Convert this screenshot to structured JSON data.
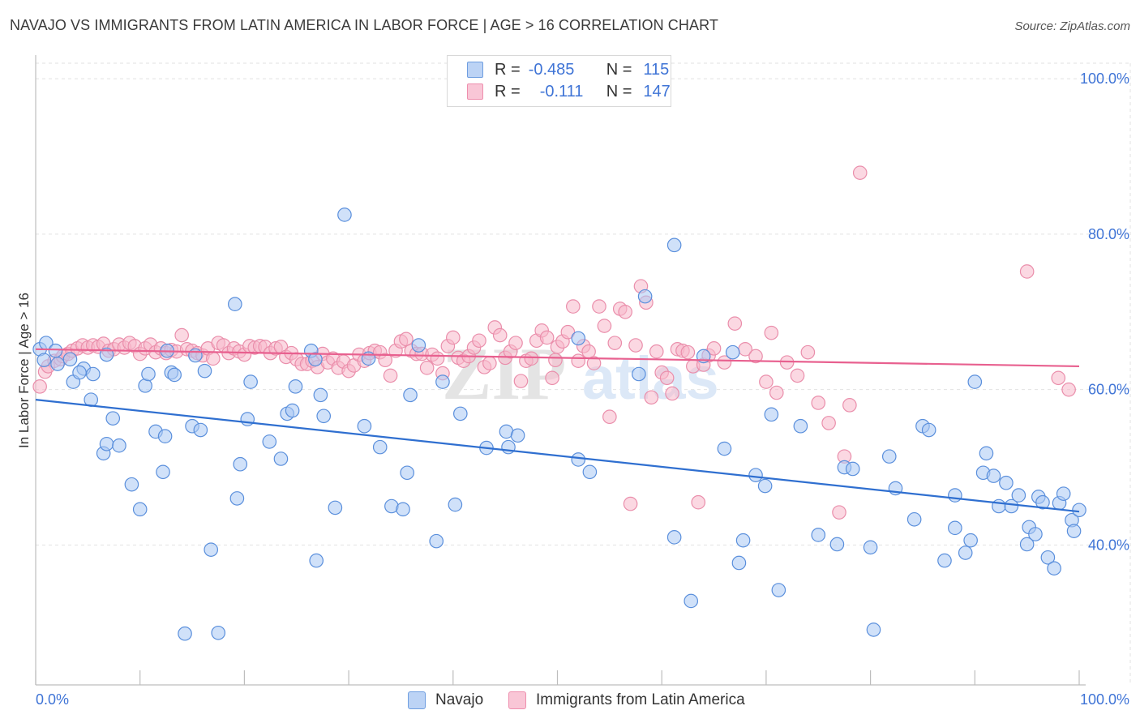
{
  "header": {
    "title": "NAVAJO VS IMMIGRANTS FROM LATIN AMERICA IN LABOR FORCE | AGE > 16 CORRELATION CHART",
    "source": "Source: ZipAtlas.com"
  },
  "legend": {
    "r_label": "R =",
    "n_label": "N =",
    "series": [
      {
        "r": "-0.485",
        "n": "115"
      },
      {
        "r": "-0.111",
        "n": "147"
      }
    ]
  },
  "watermark": {
    "zip": "ZIP",
    "atlas": "atlas"
  },
  "chart_data": {
    "type": "scatter",
    "title": "NAVAJO VS IMMIGRANTS FROM LATIN AMERICA IN LABOR FORCE | AGE > 16 CORRELATION CHART",
    "ylabel": "In Labor Force | Age > 16",
    "xlabel": "",
    "xlim": [
      0,
      100
    ],
    "ylim": [
      22,
      102
    ],
    "x_tick_labels": [
      "0.0%",
      "100.0%"
    ],
    "y_ticks": [
      100,
      80,
      60,
      40
    ],
    "y_tick_labels": [
      "100.0%",
      "80.0%",
      "60.0%",
      "40.0%"
    ],
    "grid": true,
    "colors": {
      "navajo": "#a9c8f4",
      "navajo_line": "#2f6fd0",
      "latin": "#f7b8cb",
      "latin_line": "#e8608f",
      "tick_text": "#3f74d6"
    },
    "series": [
      {
        "name": "Navajo",
        "r": -0.485,
        "n": 115,
        "trend": {
          "x": [
            0,
            100
          ],
          "y": [
            58.7,
            44.3
          ]
        },
        "points": [
          [
            0.4,
            65.2
          ],
          [
            1.0,
            66.0
          ],
          [
            1.9,
            65.0
          ],
          [
            0.8,
            63.8
          ],
          [
            2.1,
            63.3
          ],
          [
            3.3,
            63.9
          ],
          [
            4.6,
            62.7
          ],
          [
            3.6,
            61.0
          ],
          [
            4.2,
            62.2
          ],
          [
            5.5,
            62.0
          ],
          [
            5.3,
            58.7
          ],
          [
            7.4,
            56.3
          ],
          [
            6.5,
            51.8
          ],
          [
            6.8,
            53.0
          ],
          [
            8.0,
            52.8
          ],
          [
            9.2,
            47.8
          ],
          [
            10.0,
            44.6
          ],
          [
            10.5,
            60.5
          ],
          [
            10.8,
            62.0
          ],
          [
            11.5,
            54.6
          ],
          [
            12.2,
            49.4
          ],
          [
            12.4,
            54.0
          ],
          [
            12.6,
            65.0
          ],
          [
            13.0,
            62.2
          ],
          [
            13.3,
            61.9
          ],
          [
            14.3,
            28.6
          ],
          [
            15.0,
            55.3
          ],
          [
            15.8,
            54.8
          ],
          [
            16.2,
            62.4
          ],
          [
            16.8,
            39.4
          ],
          [
            17.5,
            28.7
          ],
          [
            19.1,
            71.0
          ],
          [
            19.3,
            46.0
          ],
          [
            19.6,
            50.4
          ],
          [
            20.3,
            56.2
          ],
          [
            20.6,
            61.0
          ],
          [
            22.4,
            53.3
          ],
          [
            23.5,
            51.1
          ],
          [
            24.1,
            56.9
          ],
          [
            24.6,
            57.3
          ],
          [
            24.9,
            60.4
          ],
          [
            26.4,
            65.0
          ],
          [
            26.9,
            38.0
          ],
          [
            27.3,
            59.3
          ],
          [
            27.6,
            56.6
          ],
          [
            28.7,
            44.8
          ],
          [
            29.6,
            82.5
          ],
          [
            31.5,
            55.3
          ],
          [
            33.0,
            52.6
          ],
          [
            34.1,
            45.0
          ],
          [
            35.2,
            44.6
          ],
          [
            35.6,
            49.3
          ],
          [
            35.9,
            59.3
          ],
          [
            36.7,
            65.7
          ],
          [
            38.4,
            40.5
          ],
          [
            39.0,
            61.0
          ],
          [
            40.2,
            45.2
          ],
          [
            40.7,
            56.9
          ],
          [
            43.2,
            52.5
          ],
          [
            45.1,
            54.6
          ],
          [
            45.3,
            52.6
          ],
          [
            46.2,
            54.1
          ],
          [
            52.0,
            66.6
          ],
          [
            52.0,
            51.0
          ],
          [
            53.1,
            49.4
          ],
          [
            57.8,
            62.0
          ],
          [
            58.4,
            72.0
          ],
          [
            61.2,
            78.6
          ],
          [
            61.2,
            41.0
          ],
          [
            62.8,
            32.8
          ],
          [
            64.0,
            64.3
          ],
          [
            66.0,
            52.4
          ],
          [
            66.8,
            64.8
          ],
          [
            67.4,
            37.7
          ],
          [
            67.8,
            40.6
          ],
          [
            69.0,
            49.0
          ],
          [
            69.9,
            47.6
          ],
          [
            70.5,
            56.8
          ],
          [
            71.2,
            34.2
          ],
          [
            73.3,
            55.3
          ],
          [
            75.0,
            41.3
          ],
          [
            76.8,
            40.1
          ],
          [
            77.5,
            50.0
          ],
          [
            78.3,
            49.8
          ],
          [
            80.0,
            39.7
          ],
          [
            80.3,
            29.1
          ],
          [
            81.8,
            51.4
          ],
          [
            82.4,
            47.3
          ],
          [
            84.2,
            43.3
          ],
          [
            85.0,
            55.3
          ],
          [
            85.6,
            54.8
          ],
          [
            87.1,
            38.0
          ],
          [
            88.1,
            46.4
          ],
          [
            88.1,
            42.2
          ],
          [
            89.1,
            39.0
          ],
          [
            89.6,
            40.6
          ],
          [
            90.0,
            61.0
          ],
          [
            90.8,
            49.3
          ],
          [
            91.1,
            51.8
          ],
          [
            91.8,
            48.9
          ],
          [
            92.3,
            45.0
          ],
          [
            93.0,
            48.0
          ],
          [
            93.5,
            45.0
          ],
          [
            94.2,
            46.4
          ],
          [
            95.0,
            40.1
          ],
          [
            95.2,
            42.3
          ],
          [
            95.8,
            41.4
          ],
          [
            96.1,
            46.2
          ],
          [
            96.5,
            45.5
          ],
          [
            97.0,
            38.4
          ],
          [
            97.6,
            37.0
          ],
          [
            98.1,
            45.4
          ],
          [
            98.5,
            46.6
          ],
          [
            99.3,
            43.2
          ],
          [
            99.5,
            41.8
          ],
          [
            100.0,
            44.5
          ],
          [
            26.8,
            63.9
          ],
          [
            15.3,
            64.4
          ],
          [
            31.9,
            64.0
          ],
          [
            6.8,
            64.5
          ]
        ]
      },
      {
        "name": "Immigrants from Latin America",
        "r": -0.111,
        "n": 147,
        "trend": {
          "x": [
            0,
            100
          ],
          "y": [
            65.2,
            63.0
          ]
        },
        "points": [
          [
            0.4,
            60.4
          ],
          [
            0.9,
            62.3
          ],
          [
            1.2,
            63.0
          ],
          [
            1.8,
            63.7
          ],
          [
            2.4,
            63.9
          ],
          [
            2.6,
            64.3
          ],
          [
            3.1,
            64.6
          ],
          [
            3.5,
            65.0
          ],
          [
            4.0,
            65.3
          ],
          [
            4.5,
            65.7
          ],
          [
            5.0,
            65.4
          ],
          [
            5.5,
            65.7
          ],
          [
            6.0,
            65.5
          ],
          [
            6.5,
            65.9
          ],
          [
            7.0,
            65.0
          ],
          [
            7.5,
            65.2
          ],
          [
            8.0,
            65.8
          ],
          [
            8.5,
            65.4
          ],
          [
            9.0,
            66.0
          ],
          [
            9.5,
            65.6
          ],
          [
            10.0,
            64.6
          ],
          [
            10.5,
            65.3
          ],
          [
            11.0,
            65.8
          ],
          [
            11.5,
            64.8
          ],
          [
            12.0,
            65.3
          ],
          [
            12.5,
            64.7
          ],
          [
            13.0,
            65.1
          ],
          [
            13.5,
            64.9
          ],
          [
            14.0,
            67.0
          ],
          [
            14.5,
            65.2
          ],
          [
            15.0,
            65.0
          ],
          [
            15.5,
            64.7
          ],
          [
            16.0,
            64.4
          ],
          [
            16.5,
            65.3
          ],
          [
            17.0,
            64.0
          ],
          [
            17.5,
            66.0
          ],
          [
            18.0,
            65.7
          ],
          [
            18.5,
            64.7
          ],
          [
            19.0,
            65.3
          ],
          [
            19.5,
            64.9
          ],
          [
            20.0,
            64.5
          ],
          [
            20.5,
            65.6
          ],
          [
            21.0,
            65.4
          ],
          [
            21.5,
            65.6
          ],
          [
            22.0,
            65.5
          ],
          [
            22.5,
            64.7
          ],
          [
            23.0,
            65.3
          ],
          [
            23.5,
            65.5
          ],
          [
            24.0,
            64.2
          ],
          [
            24.5,
            64.7
          ],
          [
            25.0,
            63.9
          ],
          [
            25.5,
            63.3
          ],
          [
            26.0,
            63.3
          ],
          [
            26.5,
            63.7
          ],
          [
            27.0,
            62.9
          ],
          [
            27.5,
            64.6
          ],
          [
            28.0,
            63.5
          ],
          [
            28.5,
            64.0
          ],
          [
            29.0,
            62.8
          ],
          [
            29.5,
            63.6
          ],
          [
            30.0,
            62.4
          ],
          [
            30.5,
            63.1
          ],
          [
            31.0,
            64.5
          ],
          [
            31.5,
            63.7
          ],
          [
            32.0,
            64.7
          ],
          [
            32.5,
            65.0
          ],
          [
            33.0,
            64.8
          ],
          [
            33.5,
            63.8
          ],
          [
            34.0,
            61.8
          ],
          [
            34.5,
            65.0
          ],
          [
            35.0,
            66.2
          ],
          [
            35.5,
            66.5
          ],
          [
            36.0,
            65.0
          ],
          [
            36.5,
            64.6
          ],
          [
            37.0,
            64.6
          ],
          [
            37.5,
            62.8
          ],
          [
            38.0,
            64.5
          ],
          [
            38.5,
            64.0
          ],
          [
            39.0,
            62.1
          ],
          [
            39.5,
            65.6
          ],
          [
            40.0,
            66.7
          ],
          [
            40.5,
            64.1
          ],
          [
            41.0,
            63.7
          ],
          [
            41.5,
            64.3
          ],
          [
            42.0,
            65.4
          ],
          [
            42.5,
            66.3
          ],
          [
            43.0,
            62.9
          ],
          [
            43.5,
            63.4
          ],
          [
            44.0,
            68.0
          ],
          [
            44.5,
            67.0
          ],
          [
            45.0,
            64.1
          ],
          [
            45.5,
            64.9
          ],
          [
            46.0,
            66.0
          ],
          [
            46.5,
            61.1
          ],
          [
            47.0,
            63.7
          ],
          [
            47.5,
            64.0
          ],
          [
            48.0,
            66.3
          ],
          [
            48.5,
            67.6
          ],
          [
            49.0,
            66.7
          ],
          [
            49.5,
            61.5
          ],
          [
            50.0,
            65.5
          ],
          [
            50.5,
            66.2
          ],
          [
            51.0,
            67.4
          ],
          [
            51.5,
            70.7
          ],
          [
            52.0,
            63.7
          ],
          [
            52.5,
            65.6
          ],
          [
            53.0,
            64.9
          ],
          [
            53.5,
            63.4
          ],
          [
            54.0,
            70.7
          ],
          [
            54.5,
            68.2
          ],
          [
            55.0,
            56.5
          ],
          [
            55.5,
            66.0
          ],
          [
            56.0,
            70.4
          ],
          [
            56.5,
            70.0
          ],
          [
            57.0,
            45.3
          ],
          [
            57.5,
            65.7
          ],
          [
            58.0,
            73.3
          ],
          [
            58.5,
            71.2
          ],
          [
            59.0,
            59.0
          ],
          [
            59.5,
            64.9
          ],
          [
            60.0,
            62.2
          ],
          [
            60.5,
            61.5
          ],
          [
            61.0,
            59.5
          ],
          [
            61.5,
            65.2
          ],
          [
            62.0,
            65.0
          ],
          [
            62.5,
            64.8
          ],
          [
            63.0,
            63.0
          ],
          [
            63.5,
            45.5
          ],
          [
            64.0,
            63.2
          ],
          [
            64.5,
            64.4
          ],
          [
            65.0,
            65.3
          ],
          [
            66.0,
            63.5
          ],
          [
            67.0,
            68.5
          ],
          [
            68.0,
            65.2
          ],
          [
            69.0,
            64.3
          ],
          [
            70.0,
            61.0
          ],
          [
            70.5,
            67.3
          ],
          [
            71.0,
            59.6
          ],
          [
            72.0,
            63.5
          ],
          [
            73.0,
            61.8
          ],
          [
            74.0,
            64.8
          ],
          [
            75.0,
            58.3
          ],
          [
            76.0,
            55.7
          ],
          [
            77.0,
            44.2
          ],
          [
            77.5,
            51.4
          ],
          [
            78.0,
            58.0
          ],
          [
            79.0,
            87.9
          ],
          [
            95.0,
            75.2
          ],
          [
            98.0,
            61.5
          ],
          [
            99.0,
            60.0
          ],
          [
            49.8,
            63.8
          ]
        ]
      }
    ]
  }
}
